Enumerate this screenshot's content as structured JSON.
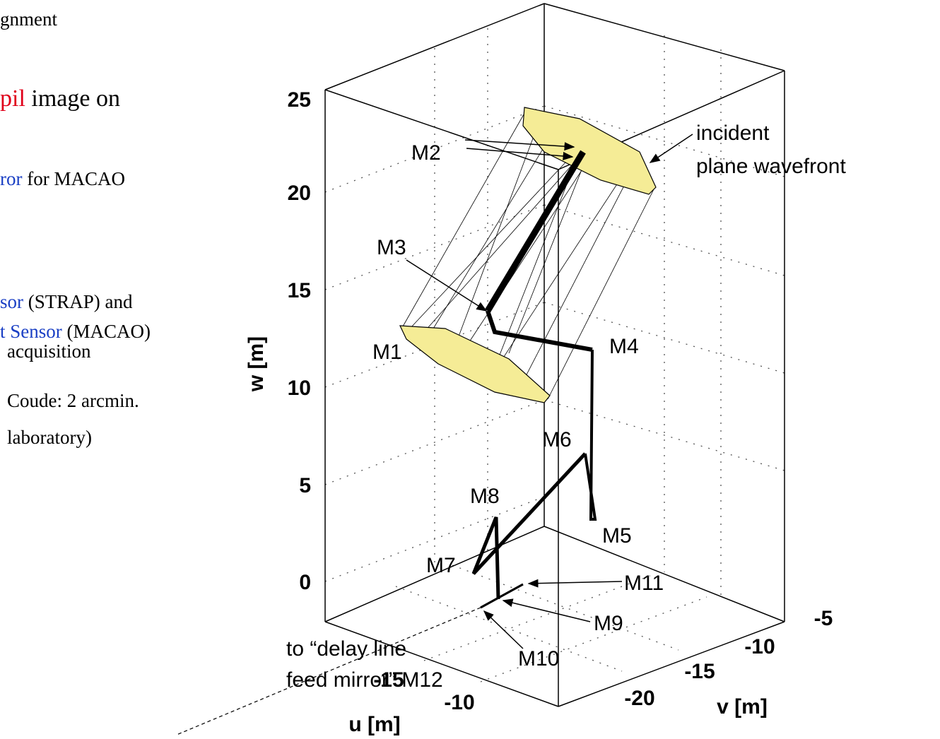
{
  "slide": {
    "lines": [
      {
        "parts": [
          "gnment"
        ]
      },
      {
        "parts": [
          "pil",
          " image on"
        ]
      },
      {
        "parts": [
          "ror",
          " for MACAO"
        ]
      },
      {
        "parts": [
          "sor",
          " (STRAP) and"
        ]
      },
      {
        "parts": [
          "t Sensor",
          " (MACAO)"
        ]
      },
      {
        "parts": [
          "acquisition"
        ]
      },
      {
        "parts": [
          "Coude: 2 arcmin."
        ]
      },
      {
        "parts": [
          "laboratory)"
        ]
      }
    ]
  },
  "plot": {
    "w_ticks": [
      "25",
      "20",
      "15",
      "10",
      "5",
      "0"
    ],
    "u_ticks": [
      "-15",
      "-10"
    ],
    "v_ticks": [
      "-5",
      "-10",
      "-15",
      "-20"
    ],
    "w_label": "w [m]",
    "u_label": "u [m]",
    "v_label": "v [m]",
    "mirrors": [
      "M1",
      "M2",
      "M3",
      "M4",
      "M5",
      "M6",
      "M7",
      "M8",
      "M9",
      "M10",
      "M11"
    ],
    "incident": [
      "incident",
      "plane wavefront"
    ],
    "delay": [
      "to “delay line",
      "feed mirror” M12"
    ]
  }
}
